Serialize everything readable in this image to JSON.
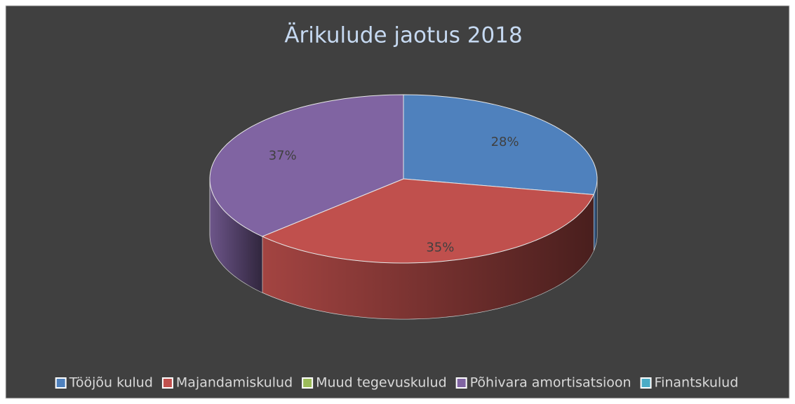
{
  "chart_data": {
    "type": "pie",
    "title": "Ärikulude jaotus  2018",
    "categories": [
      "Tööjõu kulud",
      "Majandamiskulud",
      "Muud tegevuskulud",
      "Põhivara amortisatsioon",
      "Finantskulud"
    ],
    "values": [
      28,
      35,
      0,
      37,
      0
    ],
    "value_labels": [
      "28%",
      "35%",
      null,
      "37%",
      null
    ],
    "colors": [
      "#4f81bd",
      "#c0504d",
      "#9bbb59",
      "#8064a2",
      "#4bacc6"
    ],
    "legend": "bottom"
  }
}
